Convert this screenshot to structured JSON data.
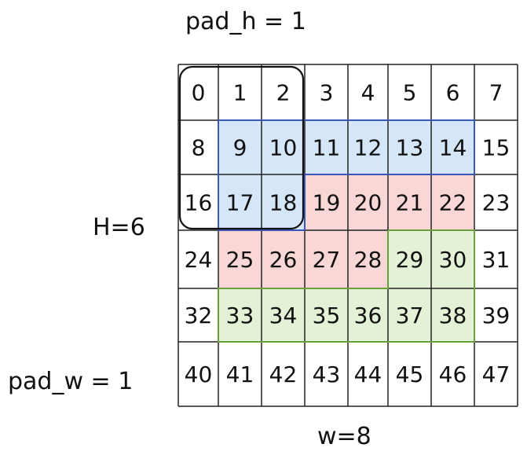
{
  "labels": {
    "pad_h": "pad_h = 1",
    "height": "H=6",
    "pad_w": "pad_w = 1",
    "width": "w=8"
  },
  "grid": {
    "rows": 6,
    "cols": 8,
    "cells": [
      [
        "0",
        "1",
        "2",
        "3",
        "4",
        "5",
        "6",
        "7"
      ],
      [
        "8",
        "9",
        "10",
        "11",
        "12",
        "13",
        "14",
        "15"
      ],
      [
        "16",
        "17",
        "18",
        "19",
        "20",
        "21",
        "22",
        "23"
      ],
      [
        "24",
        "25",
        "26",
        "27",
        "28",
        "29",
        "30",
        "31"
      ],
      [
        "32",
        "33",
        "34",
        "35",
        "36",
        "37",
        "38",
        "39"
      ],
      [
        "40",
        "41",
        "42",
        "43",
        "44",
        "45",
        "46",
        "47"
      ]
    ]
  },
  "colors": {
    "blue_fill": "#d4e6f8",
    "blue_stroke": "#3b57b5",
    "red_fill": "#fad7d7",
    "green_fill": "#e3f2d6",
    "green_stroke": "#6b9e3d",
    "grid_line": "#222222",
    "window_stroke": "#111111"
  },
  "regions": {
    "blue": [
      [
        1,
        1
      ],
      [
        1,
        2
      ],
      [
        1,
        3
      ],
      [
        1,
        4
      ],
      [
        1,
        5
      ],
      [
        1,
        6
      ],
      [
        2,
        1
      ],
      [
        2,
        2
      ]
    ],
    "red": [
      [
        2,
        3
      ],
      [
        2,
        4
      ],
      [
        2,
        5
      ],
      [
        2,
        6
      ],
      [
        3,
        1
      ],
      [
        3,
        2
      ],
      [
        3,
        3
      ],
      [
        3,
        4
      ]
    ],
    "green": [
      [
        3,
        5
      ],
      [
        3,
        6
      ],
      [
        4,
        1
      ],
      [
        4,
        2
      ],
      [
        4,
        3
      ],
      [
        4,
        4
      ],
      [
        4,
        5
      ],
      [
        4,
        6
      ]
    ]
  }
}
